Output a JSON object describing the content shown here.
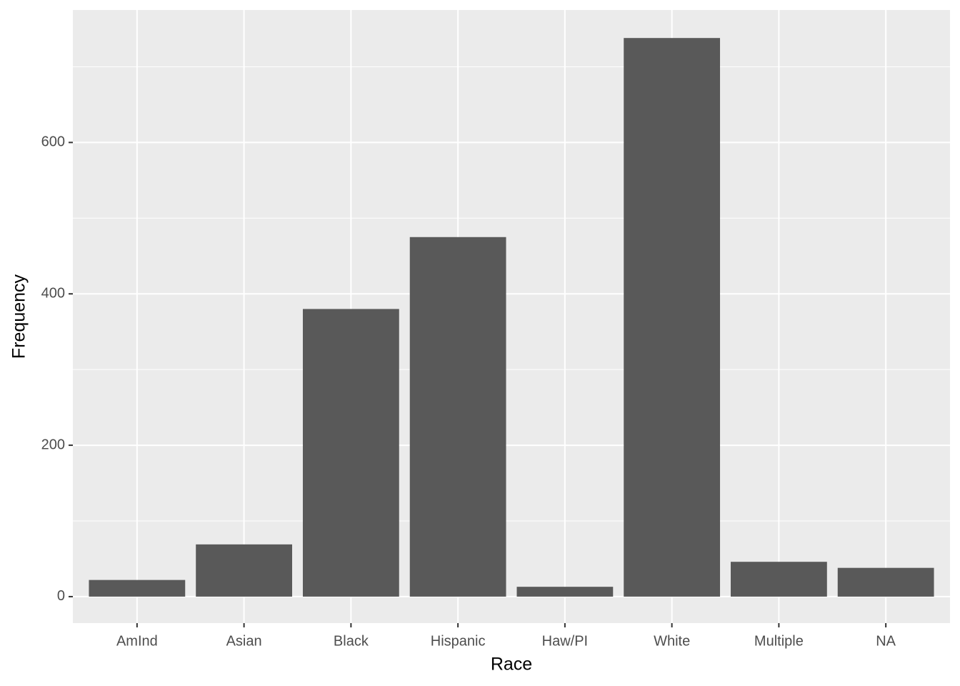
{
  "chart_data": {
    "type": "bar",
    "x_label": "Race",
    "y_label": "Frequency",
    "categories": [
      "AmInd",
      "Asian",
      "Black",
      "Hispanic",
      "Haw/PI",
      "White",
      "Multiple",
      "NA"
    ],
    "values": [
      22,
      69,
      380,
      475,
      13,
      738,
      46,
      38
    ],
    "color": "#595959",
    "ylim": [
      -35,
      775
    ],
    "yticks": [
      0,
      200,
      400,
      600
    ],
    "minor_yticks": [
      100,
      300,
      500,
      700
    ],
    "grid": true
  }
}
